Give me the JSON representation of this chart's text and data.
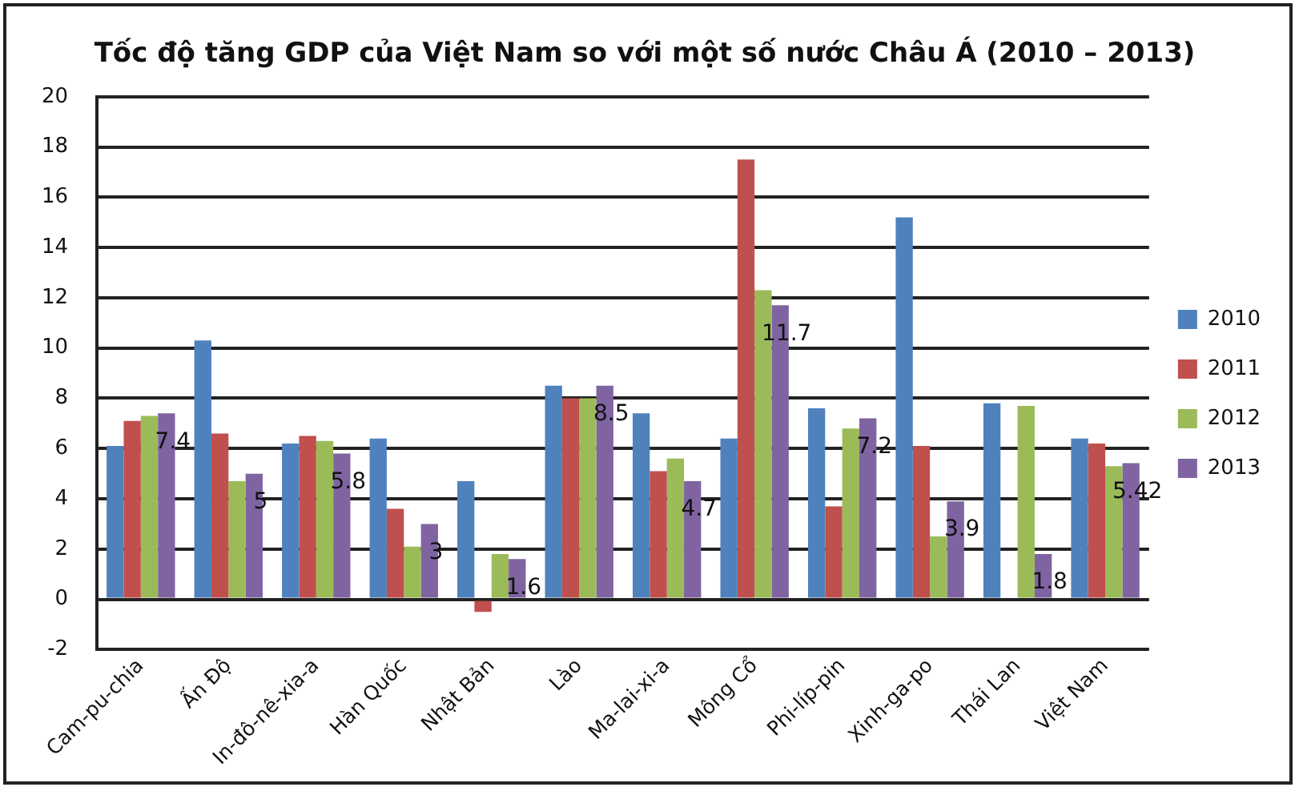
{
  "chart_data": {
    "type": "bar",
    "title": "Tốc độ tăng GDP của Việt Nam so với một số nước Châu Á (2010 – 2013)",
    "categories": [
      "Cam-pu-chia",
      "Ấn Độ",
      "In-đô-nê-xia-a",
      "Hàn Quốc",
      "Nhật Bản",
      "Lào",
      "Ma-lai-xi-a",
      "Mông Cổ",
      "Phi-líp-pin",
      "Xinh-ga-po",
      "Thái Lan",
      "Việt Nam"
    ],
    "series": [
      {
        "name": "2010",
        "color": "#4f81bd",
        "values": [
          6.1,
          10.3,
          6.2,
          6.4,
          4.7,
          8.5,
          7.4,
          6.4,
          7.6,
          15.2,
          7.8,
          6.4
        ]
      },
      {
        "name": "2011",
        "color": "#c0504d",
        "values": [
          7.1,
          6.6,
          6.5,
          3.6,
          -0.5,
          8.0,
          5.1,
          17.5,
          3.7,
          6.1,
          null,
          6.2
        ]
      },
      {
        "name": "2012",
        "color": "#9bbb59",
        "values": [
          7.3,
          4.7,
          6.3,
          2.1,
          1.8,
          8.0,
          5.6,
          12.3,
          6.8,
          2.5,
          7.7,
          5.3
        ]
      },
      {
        "name": "2013",
        "color": "#8064a2",
        "values": [
          7.4,
          5.0,
          5.8,
          3.0,
          1.6,
          8.5,
          4.7,
          11.7,
          7.2,
          3.9,
          1.8,
          5.42
        ],
        "value_labels": [
          "7.4",
          "5",
          "5.8",
          "3",
          "1.6",
          "8.5",
          "4.7",
          "11.7",
          "7.2",
          "3.9",
          "1.8",
          "5.42"
        ]
      }
    ],
    "ylim": [
      -2,
      20
    ],
    "yticks": [
      -2,
      0,
      2,
      4,
      6,
      8,
      10,
      12,
      14,
      16,
      18,
      20
    ],
    "grid": "y",
    "legend": "right"
  }
}
